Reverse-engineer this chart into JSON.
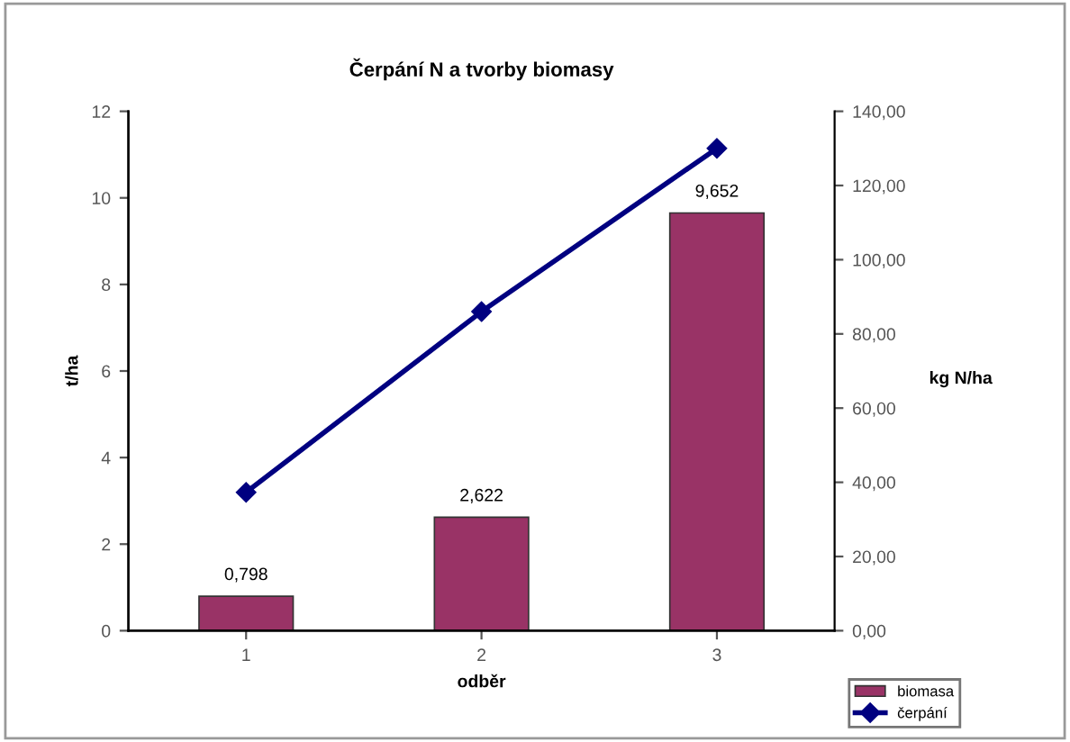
{
  "chart_data": {
    "type": "bar",
    "title": "Čerpání N a tvorby biomasy",
    "xlabel": "odběr",
    "ylabel": "t/ha",
    "y2label": "kg N/ha",
    "categories": [
      "1",
      "2",
      "3"
    ],
    "series": [
      {
        "name": "biomasa",
        "color": "#993366",
        "values": [
          0.798,
          2.622,
          9.652
        ],
        "value_labels": [
          "0,798",
          "2,622",
          "9,652"
        ]
      },
      {
        "name": "čerpání",
        "type": "line",
        "axis": "y2",
        "color": "#000080",
        "values": [
          37.3,
          86,
          130
        ],
        "marker": "diamond"
      }
    ],
    "ylim": [
      0,
      12
    ],
    "yticks": [
      0,
      2,
      4,
      6,
      8,
      10,
      12
    ],
    "y2lim": [
      0,
      140
    ],
    "y2ticks": [
      {
        "value": 0,
        "label": "0,00"
      },
      {
        "value": 20,
        "label": "20,00"
      },
      {
        "value": 40,
        "label": "40,00"
      },
      {
        "value": 60,
        "label": "60,00"
      },
      {
        "value": 80,
        "label": "80,00"
      },
      {
        "value": 100,
        "label": "100,00"
      },
      {
        "value": 120,
        "label": "120,00"
      },
      {
        "value": 140,
        "label": "140,00"
      }
    ],
    "legend": "bottom right",
    "grid": false
  }
}
